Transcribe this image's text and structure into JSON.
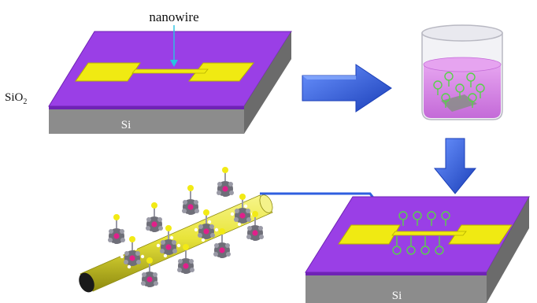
{
  "labels": {
    "nanowire": "nanowire",
    "sio2_main": "SiO",
    "sio2_sub": "2",
    "si_left": "Si",
    "si_right": "Si"
  },
  "colors": {
    "sio2_top": "#9a3fe6",
    "sio2_edge": "#6f23b5",
    "si_front": "#8c8c8c",
    "si_side": "#6b6b6b",
    "electrode": "#f0ea12",
    "electrode_edge": "#b5b000",
    "nanowire_cyan": "#27c4e0",
    "flow_arrow": "#2f5fe0",
    "liquid": "#d98ee8",
    "beaker": "#d8d8de",
    "molecule_green": "#58d24a",
    "ring_gray": "#6e6e78",
    "metal_pink": "#e0208a",
    "tip_yellow": "#f2ea15",
    "wire_yellow": "#e8e43a"
  },
  "icons": [
    "arrow-right-icon",
    "arrow-down-icon",
    "beaker-icon",
    "molecule-icon"
  ]
}
